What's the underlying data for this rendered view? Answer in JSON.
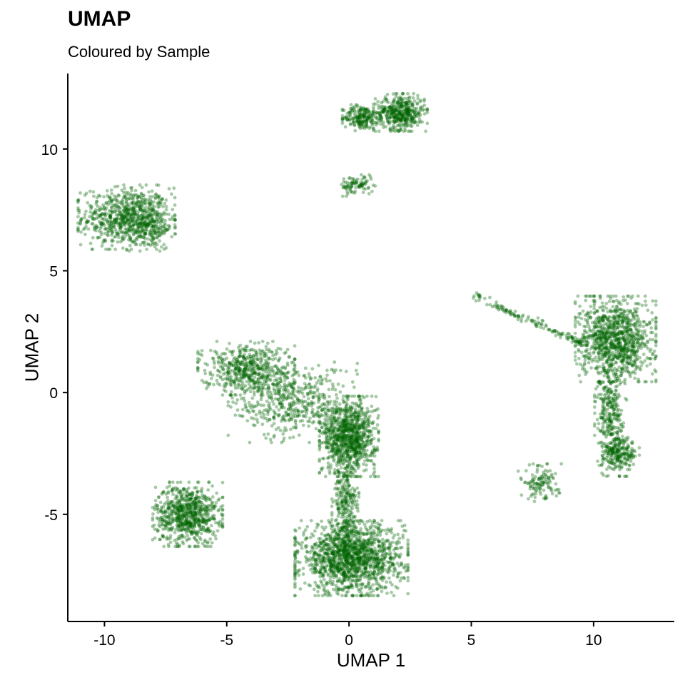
{
  "chart_data": {
    "type": "scatter",
    "title": "UMAP",
    "subtitle": "Coloured by Sample",
    "xlabel": "UMAP 1",
    "ylabel": "UMAP 2",
    "xlim": [
      -11.5,
      13.3
    ],
    "ylim": [
      -9.4,
      13.1
    ],
    "xticks": [
      -10,
      -5,
      0,
      5,
      10
    ],
    "yticks": [
      -5,
      0,
      5,
      10
    ],
    "xtick_labels": [
      "-10",
      "-5",
      "0",
      "5",
      "10"
    ],
    "ytick_labels": [
      "-5",
      "0",
      "5",
      "10"
    ],
    "point_color": "#006400",
    "point_opacity": 0.35,
    "grid": false,
    "legend": "none",
    "clusters": [
      {
        "name": "top-left blob",
        "center": [
          -9.1,
          7.2
        ],
        "spread": [
          0.9,
          0.6
        ],
        "points": 700
      },
      {
        "name": "top-left blob tail",
        "center": [
          -8.2,
          6.8
        ],
        "spread": [
          0.5,
          0.45
        ],
        "points": 180
      },
      {
        "name": "top cluster left lobe",
        "center": [
          0.5,
          11.3
        ],
        "spread": [
          0.35,
          0.25
        ],
        "points": 200
      },
      {
        "name": "top cluster right lobe",
        "center": [
          2.1,
          11.5
        ],
        "spread": [
          0.5,
          0.35
        ],
        "points": 450
      },
      {
        "name": "small triangle",
        "center": [
          0.3,
          8.5
        ],
        "spread": [
          0.35,
          0.2
        ],
        "points": 90
      },
      {
        "name": "lower-left blob",
        "center": [
          -6.6,
          -5.0
        ],
        "spread": [
          0.65,
          0.6
        ],
        "points": 750
      },
      {
        "name": "bottom blob",
        "center": [
          0.1,
          -6.8
        ],
        "spread": [
          1.05,
          0.7
        ],
        "points": 1500
      },
      {
        "name": "central bridge",
        "center": [
          -0.15,
          -4.6
        ],
        "spread": [
          0.25,
          0.9
        ],
        "points": 260
      },
      {
        "name": "central blob",
        "center": [
          0.0,
          -1.8
        ],
        "spread": [
          0.55,
          0.75
        ],
        "points": 950
      },
      {
        "name": "ring upper-left",
        "center": [
          -4.2,
          1.0
        ],
        "spread": [
          0.9,
          0.5
        ],
        "points": 520
      },
      {
        "name": "scattered stream",
        "center": [
          -2.3,
          -0.4
        ],
        "spread": [
          1.2,
          0.75
        ],
        "points": 500
      },
      {
        "name": "right blob",
        "center": [
          10.9,
          2.2
        ],
        "spread": [
          0.75,
          0.8
        ],
        "points": 1000
      },
      {
        "name": "right stalk",
        "center": [
          10.7,
          -0.8
        ],
        "spread": [
          0.3,
          1.2
        ],
        "points": 350
      },
      {
        "name": "right lower lobe",
        "center": [
          11.1,
          -2.5
        ],
        "spread": [
          0.35,
          0.3
        ],
        "points": 200
      },
      {
        "name": "diagonal strand",
        "center": [
          7.5,
          2.4
        ],
        "spread": [
          1.4,
          0.12
        ],
        "points": 140
      },
      {
        "name": "small lower-right group",
        "center": [
          7.8,
          -3.7
        ],
        "spread": [
          0.4,
          0.35
        ],
        "points": 120
      }
    ]
  }
}
